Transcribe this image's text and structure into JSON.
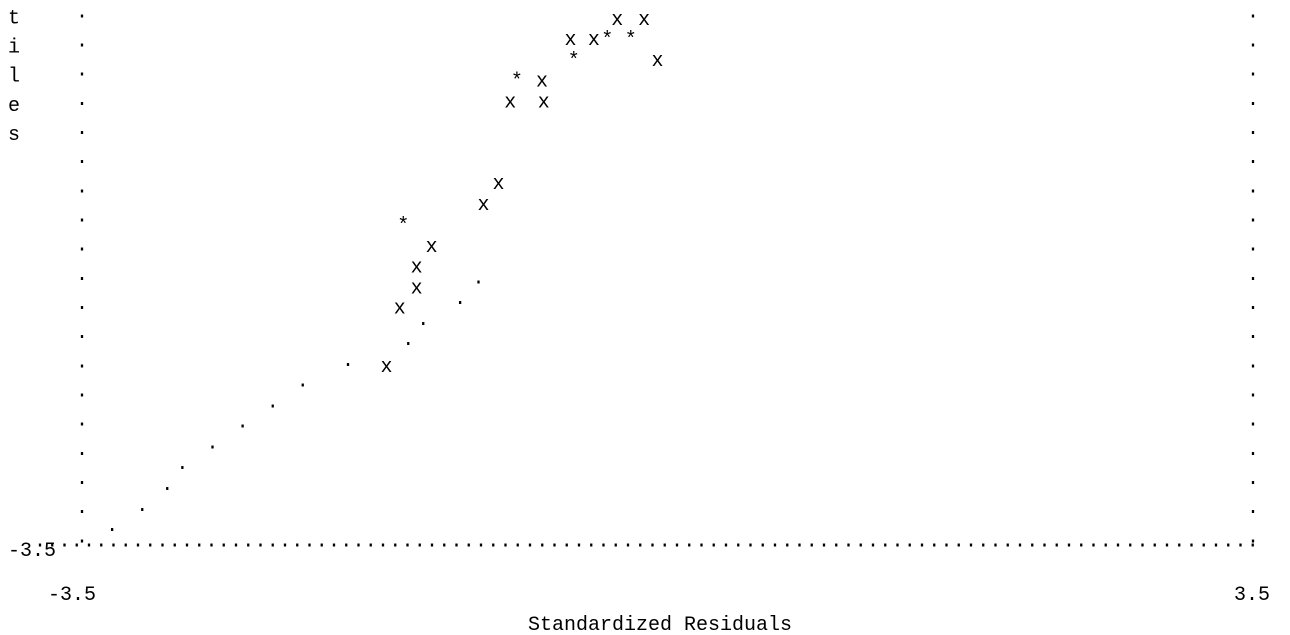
{
  "chart_data": {
    "type": "scatter",
    "title": "",
    "xlabel": "Standardized Residuals",
    "ylabel_visible_letters": [
      "t",
      "i",
      "l",
      "e",
      "s"
    ],
    "xlim": [
      -3.5,
      3.5
    ],
    "ylim": [
      -3.5,
      3.5
    ],
    "x_tick_labels": [
      "-3.5",
      "3.5"
    ],
    "y_tick_labels": [
      "-3.5"
    ],
    "grid": false,
    "legend": "none",
    "marker_glyphs": {
      "point": "x",
      "overlap": "*",
      "reference": "."
    },
    "reference_line": {
      "glyph": ".",
      "x": [
        -3.32,
        -3.14,
        -2.99,
        -2.9,
        -2.72,
        -2.54,
        -2.36,
        -2.18,
        -1.91,
        -1.55,
        -1.46,
        -1.24,
        -1.13
      ],
      "y": [
        -3.35,
        -3.08,
        -2.8,
        -2.52,
        -2.25,
        -1.97,
        -1.7,
        -1.42,
        -1.15,
        -0.87,
        -0.6,
        -0.32,
        -0.05
      ]
    },
    "series": [
      {
        "glyph": "x",
        "x": [
          -1.68,
          -1.6,
          -1.5,
          -1.5,
          -1.41,
          -1.1,
          -1.01,
          -0.94,
          -0.74,
          -0.75,
          -0.58,
          -0.44,
          -0.3,
          -0.14,
          -0.06
        ],
        "y": [
          -1.15,
          -0.37,
          -0.1,
          0.18,
          0.45,
          1.01,
          1.29,
          2.38,
          2.38,
          2.66,
          3.21,
          3.21,
          3.48,
          3.48,
          2.93
        ]
      },
      {
        "glyph": "*",
        "x": [
          -1.58,
          -0.9,
          -0.56,
          -0.36,
          -0.22
        ],
        "y": [
          0.73,
          2.66,
          2.93,
          3.21,
          3.21
        ]
      }
    ]
  }
}
